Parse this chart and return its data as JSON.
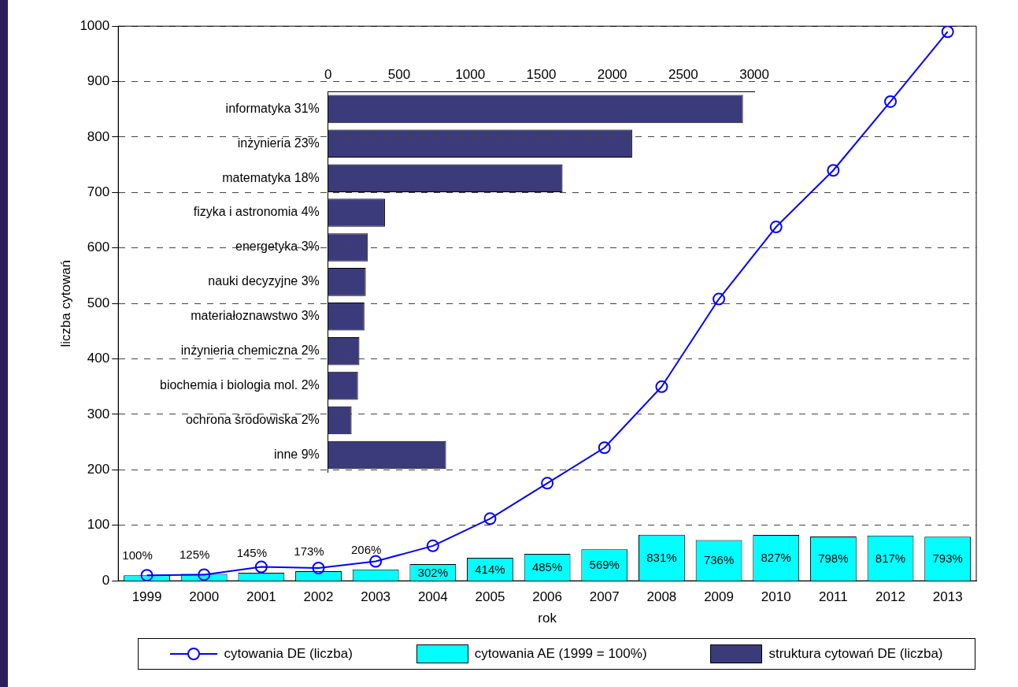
{
  "chart_data": [
    {
      "type": "bar",
      "xlabel": "rok",
      "ylabel": "liczba cytowań",
      "categories": [
        "1999",
        "2000",
        "2001",
        "2002",
        "2003",
        "2004",
        "2005",
        "2006",
        "2007",
        "2008",
        "2009",
        "2010",
        "2011",
        "2012",
        "2013"
      ],
      "series": [
        {
          "type": "line",
          "name": "cytowania DE (liczba)",
          "color": "#0000ff",
          "marker": "circle",
          "values": [
            10,
            11,
            25,
            23,
            35,
            63,
            112,
            176,
            240,
            350,
            508,
            638,
            740,
            864,
            990
          ]
        },
        {
          "type": "bar",
          "name": "cytowania AE (1999 = 100%)",
          "color": "#00ffff",
          "axis": "y2",
          "values": [
            100,
            125,
            145,
            173,
            206,
            302,
            414,
            485,
            569,
            831,
            736,
            827,
            798,
            817,
            793
          ],
          "value_labels": [
            "100%",
            "125%",
            "145%",
            "173%",
            "206%",
            "302%",
            "414%",
            "485%",
            "569%",
            "831%",
            "736%",
            "827%",
            "798%",
            "817%",
            "793%"
          ]
        }
      ],
      "ylim": [
        0,
        1000
      ],
      "yticks": [
        0,
        100,
        200,
        300,
        400,
        500,
        600,
        700,
        800,
        900,
        1000
      ],
      "y2lim": [
        0,
        10000
      ],
      "grid": "y",
      "legend": "bottom"
    },
    {
      "type": "bar",
      "orientation": "horizontal",
      "categories": [
        "informatyka 31%",
        "inżynieria 23%",
        "matematyka 18%",
        "fizyka i astronomia 4%",
        "energetyka 3%",
        "nauki decyzyjne 3%",
        "materiałoznawstwo 3%",
        "inżynieria chemiczna 2%",
        "biochemia i biologia mol. 2%",
        "ochrona środowiska 2%",
        "inne 9%"
      ],
      "series": [
        {
          "name": "struktura cytowań DE (liczba)",
          "color": "#3b3b7b",
          "values": [
            2920,
            2140,
            1650,
            400,
            280,
            265,
            255,
            220,
            210,
            165,
            830
          ]
        }
      ],
      "xlim": [
        0,
        3000
      ],
      "xticks": [
        0,
        500,
        1000,
        1500,
        2000,
        2500,
        3000
      ],
      "legend": "bottom"
    }
  ]
}
